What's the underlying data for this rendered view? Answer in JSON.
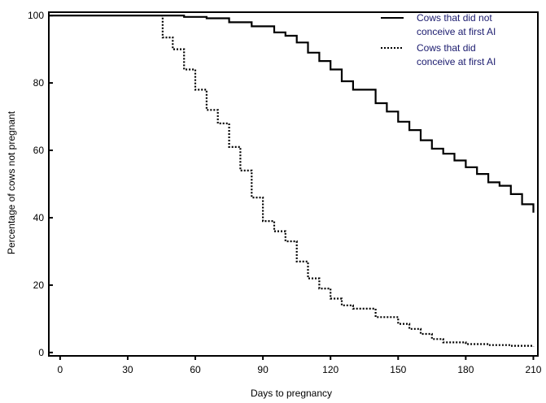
{
  "chart_data": {
    "type": "line",
    "title": "",
    "xlabel": "Days to pregnancy",
    "ylabel": "Percentage of cows not pregnant",
    "xlim": [
      -5,
      212
    ],
    "ylim": [
      -1,
      101
    ],
    "x_ticks": [
      0,
      30,
      60,
      90,
      120,
      150,
      180,
      210
    ],
    "x_tick_labels": [
      "0",
      "30",
      "60",
      "90",
      "120",
      "150",
      "180",
      "210"
    ],
    "y_ticks": [
      0,
      20,
      40,
      60,
      80,
      100
    ],
    "y_tick_labels": [
      "0",
      "20",
      "40",
      "60",
      "80",
      "100"
    ],
    "grid": false,
    "legend_position": "top-right",
    "series": [
      {
        "name": "Cows that did not conceive at first AI",
        "style": "solid",
        "color": "#000000",
        "legend_lines": [
          "Cows that did not",
          "conceive at first AI"
        ],
        "points": [
          [
            -5,
            100
          ],
          [
            45,
            100
          ],
          [
            55,
            99.6
          ],
          [
            65,
            99.2
          ],
          [
            75,
            98
          ],
          [
            85,
            96.8
          ],
          [
            95,
            95
          ],
          [
            100,
            94
          ],
          [
            105,
            92
          ],
          [
            110,
            89
          ],
          [
            115,
            86.5
          ],
          [
            120,
            84
          ],
          [
            125,
            80.5
          ],
          [
            130,
            78
          ],
          [
            140,
            74
          ],
          [
            145,
            71.5
          ],
          [
            150,
            68.5
          ],
          [
            155,
            66
          ],
          [
            160,
            63
          ],
          [
            165,
            60.5
          ],
          [
            170,
            59
          ],
          [
            175,
            57
          ],
          [
            180,
            55
          ],
          [
            185,
            53
          ],
          [
            190,
            50.5
          ],
          [
            195,
            49.5
          ],
          [
            200,
            47
          ],
          [
            205,
            44
          ],
          [
            210,
            41.5
          ]
        ]
      },
      {
        "name": "Cows that did conceive at first AI",
        "style": "dotted",
        "color": "#000000",
        "legend_lines": [
          "Cows that did",
          "conceive at first AI"
        ],
        "points": [
          [
            45,
            100
          ],
          [
            45.5,
            93.5
          ],
          [
            50,
            90
          ],
          [
            55,
            84
          ],
          [
            60,
            78
          ],
          [
            65,
            72
          ],
          [
            70,
            68
          ],
          [
            75,
            61
          ],
          [
            80,
            54
          ],
          [
            85,
            46
          ],
          [
            90,
            39
          ],
          [
            95,
            36
          ],
          [
            100,
            33
          ],
          [
            105,
            27
          ],
          [
            110,
            22
          ],
          [
            115,
            19
          ],
          [
            120,
            16
          ],
          [
            125,
            14
          ],
          [
            130,
            13
          ],
          [
            140,
            10.5
          ],
          [
            150,
            8.5
          ],
          [
            155,
            7
          ],
          [
            160,
            5.5
          ],
          [
            165,
            4
          ],
          [
            170,
            3
          ],
          [
            180,
            2.5
          ],
          [
            190,
            2.2
          ],
          [
            200,
            2
          ],
          [
            210,
            1.8
          ]
        ]
      }
    ]
  }
}
